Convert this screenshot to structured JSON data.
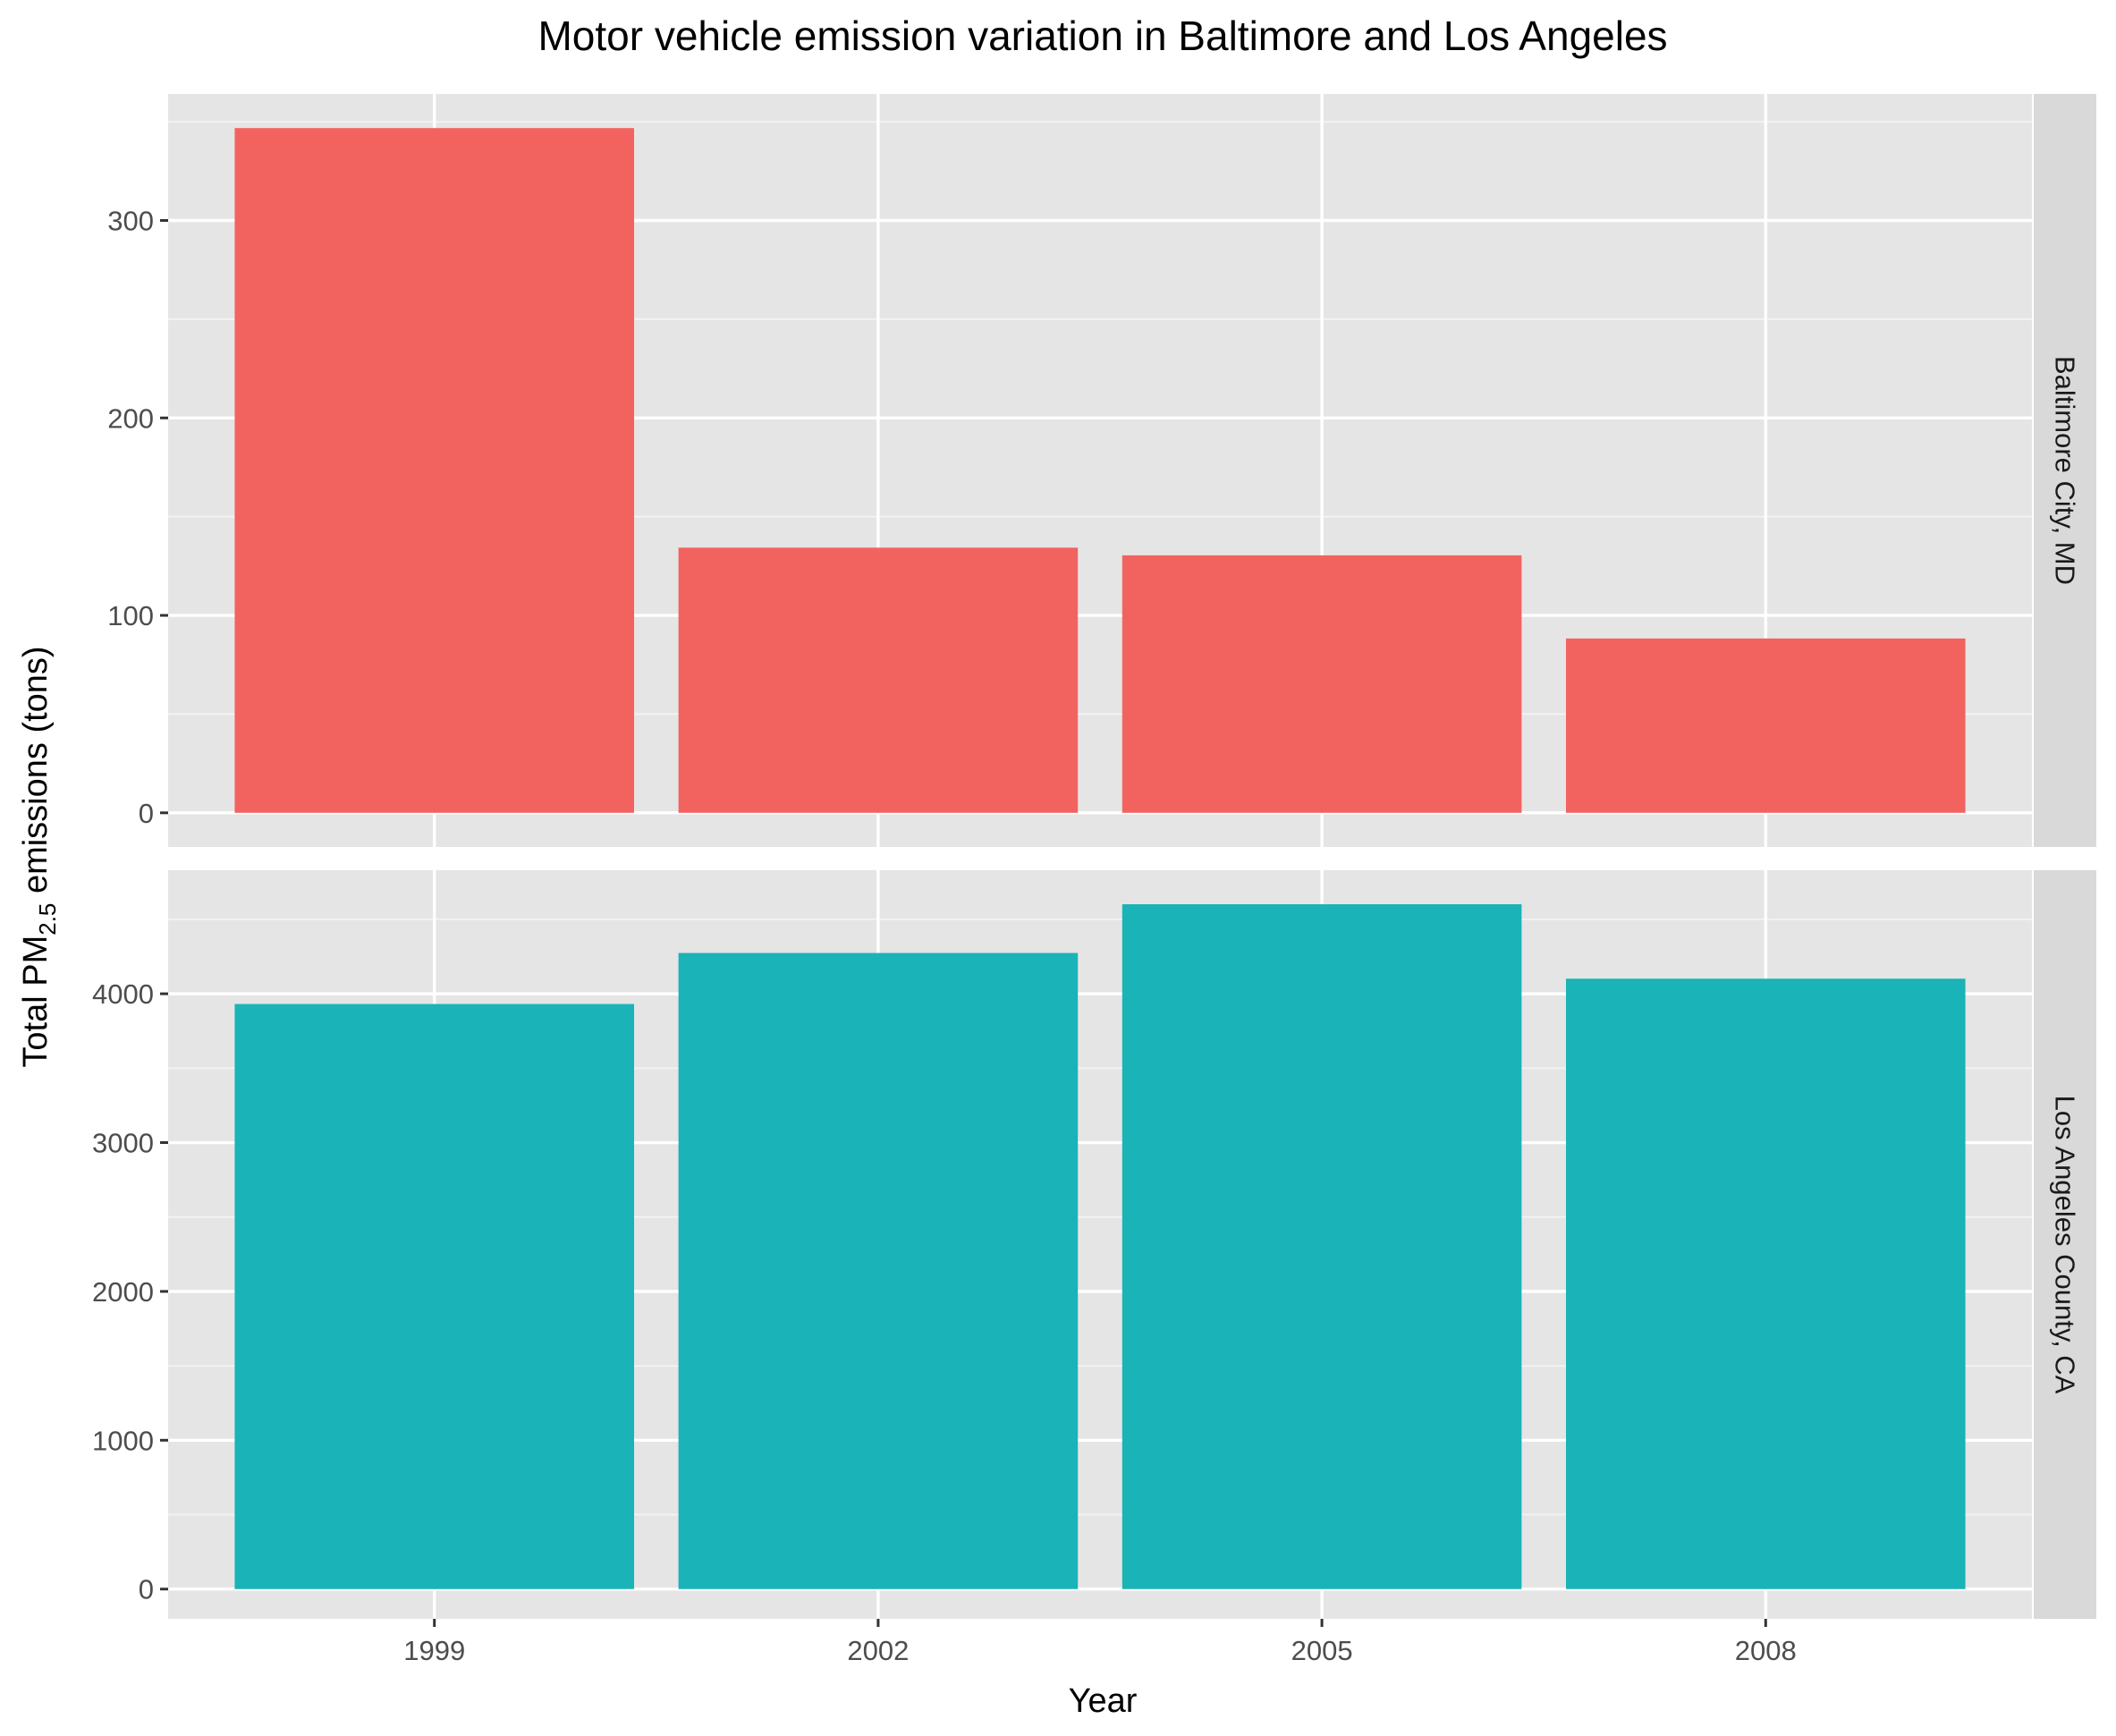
{
  "chart_data": {
    "type": "bar",
    "title": "Motor vehicle emission variation in Baltimore and Los Angeles",
    "xlabel": "Year",
    "ylabel": {
      "prefix": "Total PM",
      "subscript": "2.5",
      "suffix": " emissions (tons)"
    },
    "categories": [
      "1999",
      "2002",
      "2005",
      "2008"
    ],
    "grid": true,
    "legend": "none",
    "facets": [
      {
        "name": "Baltimore City, MD",
        "color": "#F26360",
        "values": [
          346.8,
          134.3,
          130.4,
          88.3
        ],
        "ylim": [
          -17.3,
          364.1
        ],
        "yticks": [
          0,
          100,
          200,
          300
        ],
        "yticklabels": [
          "0",
          "100",
          "200",
          "300"
        ]
      },
      {
        "name": "Los Angeles County, CA",
        "color": "#1AB3B7",
        "values": [
          3931.1,
          4274.0,
          4601.4,
          4101.3
        ],
        "ylim": [
          -200,
          4830
        ],
        "yticks": [
          0,
          1000,
          2000,
          3000,
          4000
        ],
        "yticklabels": [
          "0",
          "1000",
          "2000",
          "3000",
          "4000"
        ]
      }
    ]
  }
}
